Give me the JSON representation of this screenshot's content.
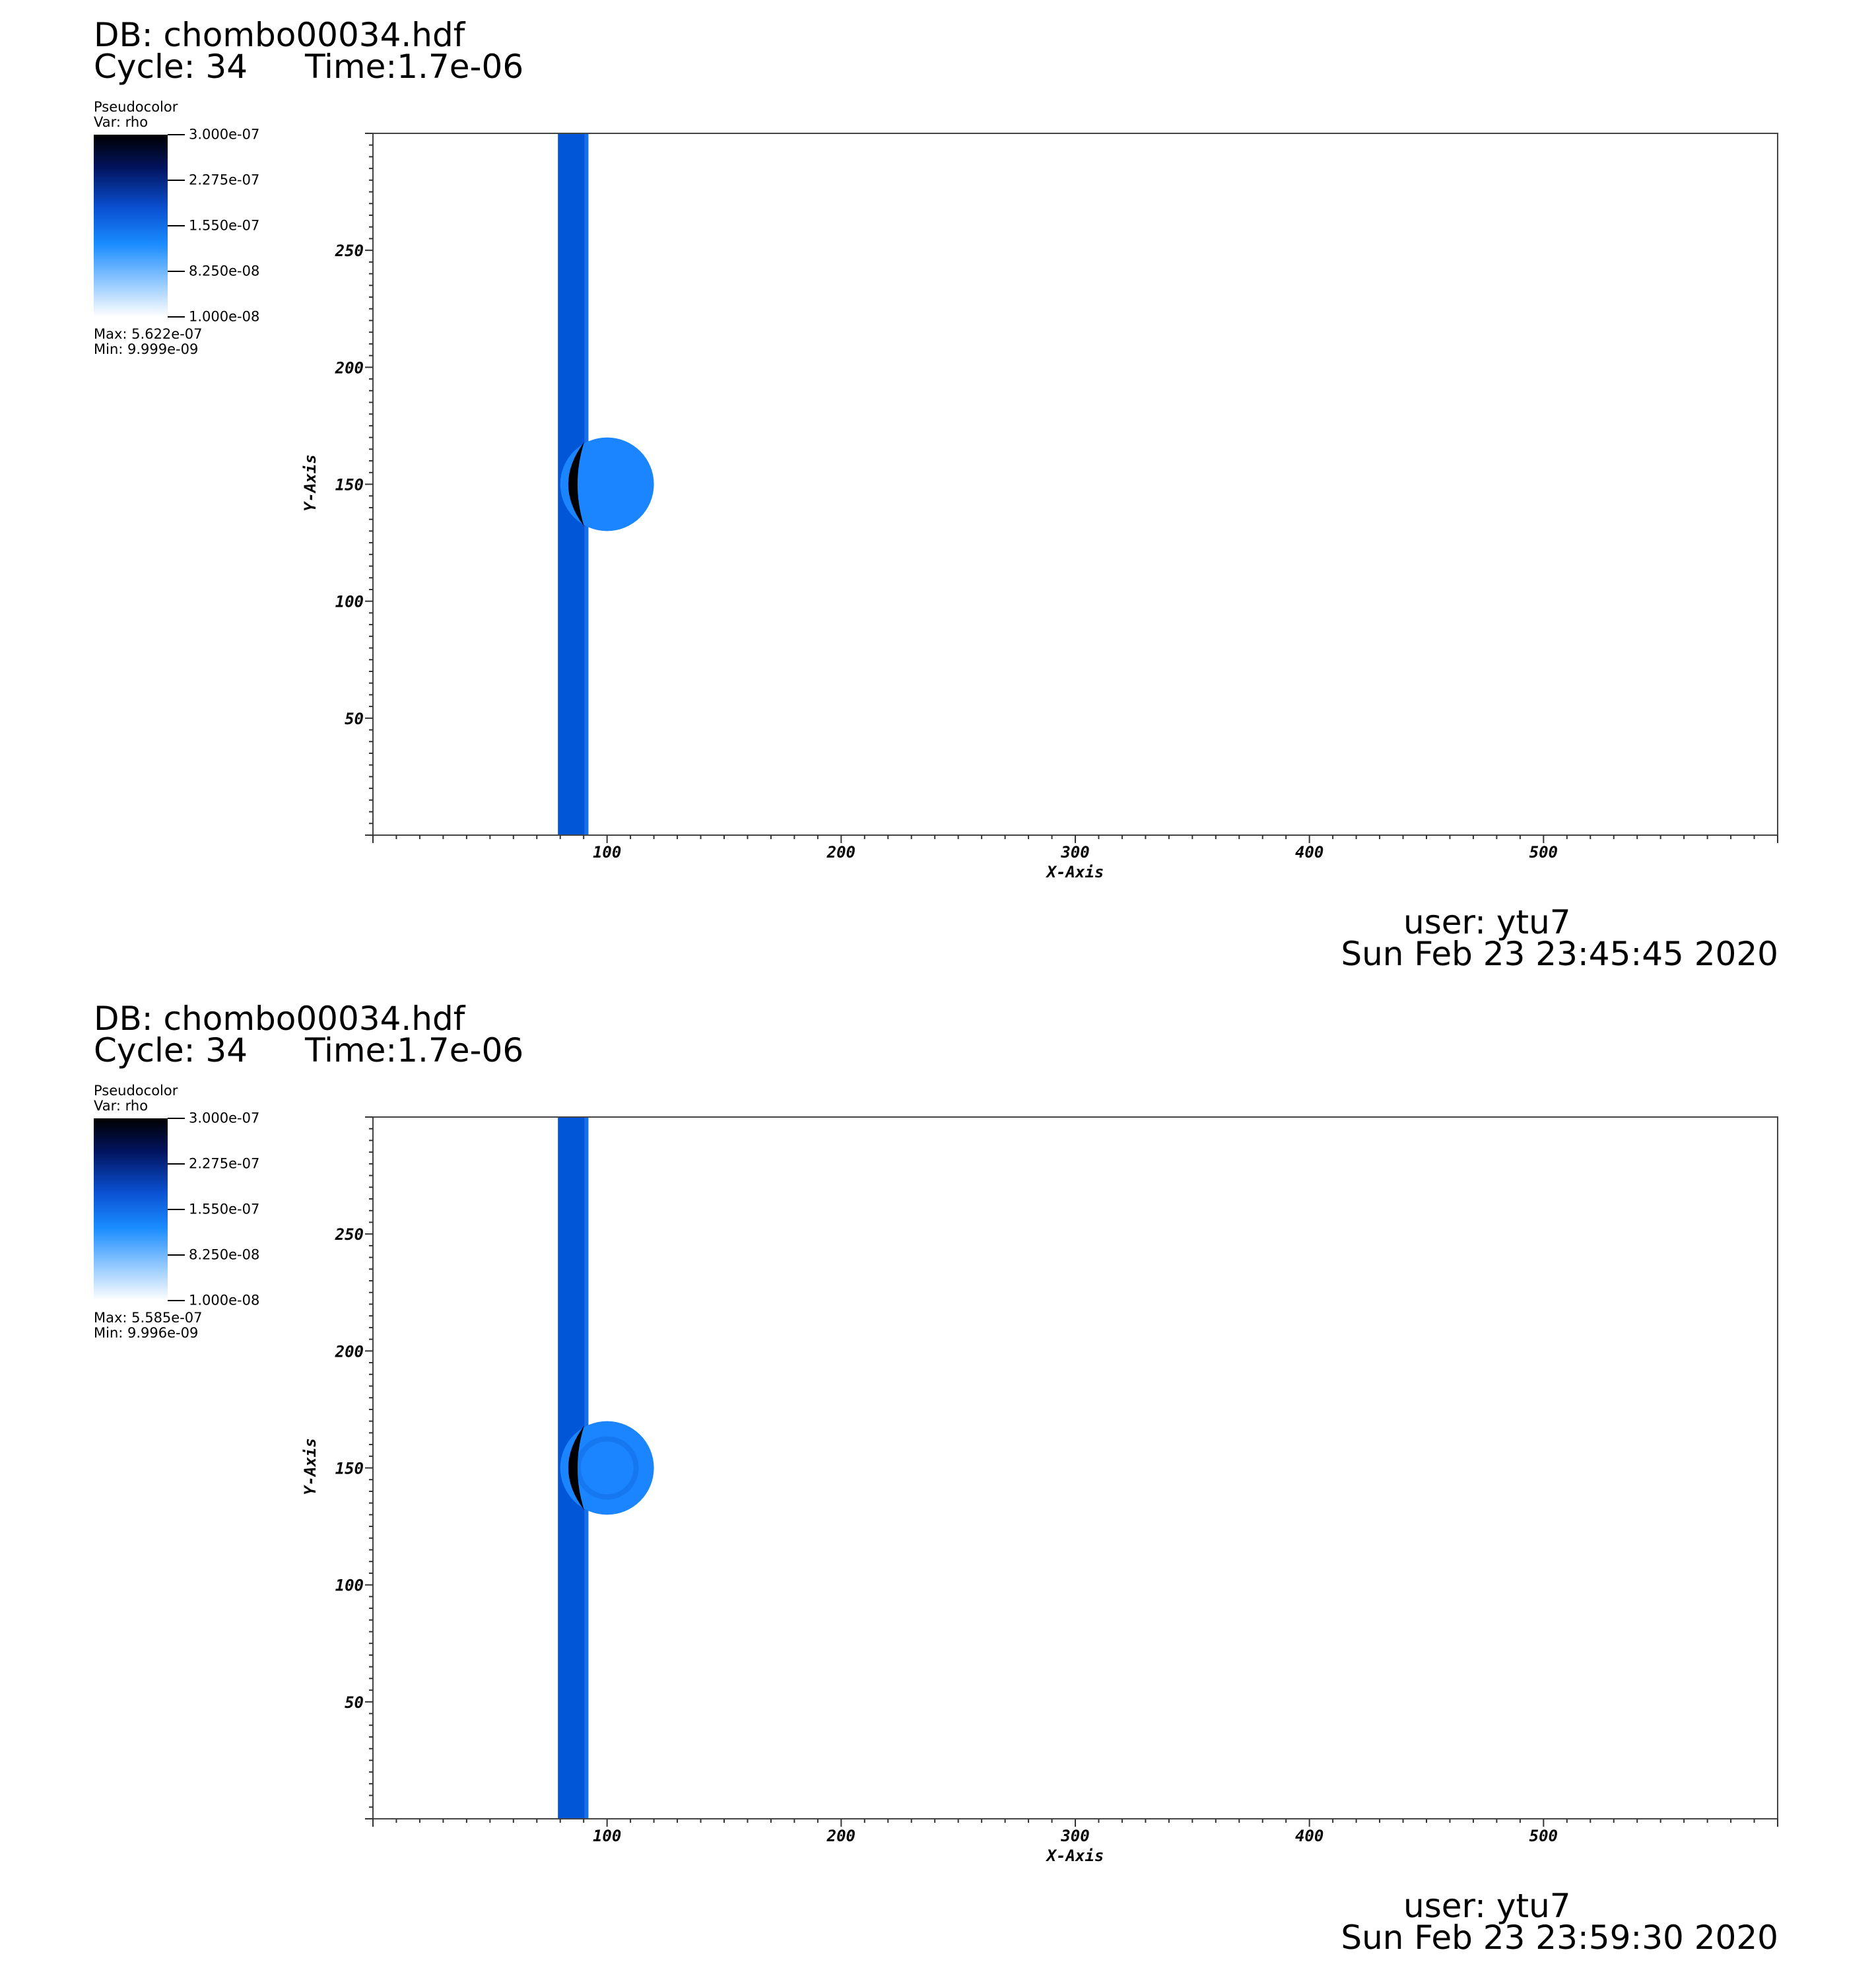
{
  "panels": [
    {
      "db_title": "DB: chombo00034.hdf",
      "cycle": "Cycle: 34",
      "time": "Time:1.7e-06",
      "legend": {
        "plot_type": "Pseudocolor",
        "var": "Var: rho",
        "ticks": [
          "3.000e-07",
          "2.275e-07",
          "1.550e-07",
          "8.250e-08",
          "1.000e-08"
        ],
        "max": "Max:  5.622e-07",
        "min": "Min:  9.999e-09"
      },
      "user": "user: ytu7",
      "date": "Sun Feb 23 23:45:45 2020"
    },
    {
      "db_title": "DB: chombo00034.hdf",
      "cycle": "Cycle: 34",
      "time": "Time:1.7e-06",
      "legend": {
        "plot_type": "Pseudocolor",
        "var": "Var: rho",
        "ticks": [
          "3.000e-07",
          "2.275e-07",
          "1.550e-07",
          "8.250e-08",
          "1.000e-08"
        ],
        "max": "Max:  5.585e-07",
        "min": "Min:  9.996e-09"
      },
      "user": "user: ytu7",
      "date": "Sun Feb 23 23:59:30 2020"
    }
  ],
  "chart_data": [
    {
      "type": "heatmap",
      "xlabel": "X-Axis",
      "ylabel": "Y-Axis",
      "xlim": [
        0,
        600
      ],
      "ylim": [
        0,
        300
      ],
      "x_ticks": [
        100,
        200,
        300,
        400,
        500
      ],
      "y_ticks": [
        50,
        100,
        150,
        200,
        250
      ],
      "colormap_range": [
        1e-08,
        3e-07
      ],
      "features": {
        "band": {
          "x_start": 79,
          "x_end": 92,
          "color": "#0056d6"
        },
        "bubble": {
          "cx": 100,
          "cy": 150,
          "r": 20,
          "color": "#1a85ff"
        },
        "shock": {
          "x": 84,
          "cy": 150,
          "half_height": 18,
          "color": "#000000"
        }
      }
    },
    {
      "type": "heatmap",
      "xlabel": "X-Axis",
      "ylabel": "Y-Axis",
      "xlim": [
        0,
        600
      ],
      "ylim": [
        0,
        300
      ],
      "x_ticks": [
        100,
        200,
        300,
        400,
        500
      ],
      "y_ticks": [
        50,
        100,
        150,
        200,
        250
      ],
      "colormap_range": [
        1e-08,
        3e-07
      ],
      "features": {
        "band": {
          "x_start": 79,
          "x_end": 92,
          "color": "#0056d6"
        },
        "bubble": {
          "cx": 100,
          "cy": 150,
          "r": 20,
          "color": "#1a85ff",
          "inner_ring": true
        },
        "shock": {
          "x": 84,
          "cy": 150,
          "half_height": 18,
          "color": "#000000"
        }
      }
    }
  ]
}
